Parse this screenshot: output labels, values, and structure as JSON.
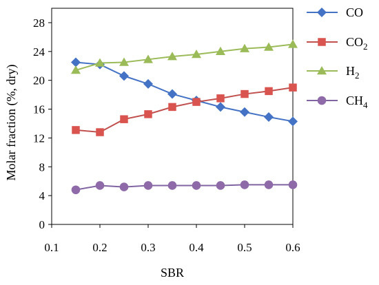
{
  "chart_data": {
    "type": "line",
    "xlabel": "SBR",
    "ylabel": "Molar fraction  (%, dry)",
    "xlim": [
      0.1,
      0.6
    ],
    "ylim": [
      0,
      30
    ],
    "x_ticks": [
      "0.1",
      "0.2",
      "0.3",
      "0.4",
      "0.5",
      "0.6"
    ],
    "y_ticks": [
      "0",
      "4",
      "8",
      "12",
      "16",
      "20",
      "24",
      "28"
    ],
    "grid": false,
    "legend_position": "right",
    "x": [
      0.15,
      0.2,
      0.25,
      0.3,
      0.35,
      0.4,
      0.45,
      0.5,
      0.55,
      0.6
    ],
    "series": [
      {
        "name": "CO",
        "name_sub": "",
        "marker": "diamond",
        "color": "#4472C4",
        "marker_color": "#4472C4",
        "values": [
          22.5,
          22.2,
          20.6,
          19.5,
          18.1,
          17.2,
          16.3,
          15.6,
          14.9,
          14.3
        ]
      },
      {
        "name": "CO",
        "name_sub": "2",
        "marker": "square",
        "color": "#C0504D",
        "marker_color": "#D9534F",
        "values": [
          13.1,
          12.8,
          14.6,
          15.3,
          16.3,
          17.0,
          17.5,
          18.1,
          18.5,
          19.0
        ]
      },
      {
        "name": "H",
        "name_sub": "2",
        "marker": "triangle",
        "color": "#9BBB59",
        "marker_color": "#9BBB59",
        "values": [
          21.4,
          22.4,
          22.5,
          22.9,
          23.3,
          23.6,
          24.0,
          24.4,
          24.6,
          25.0
        ]
      },
      {
        "name": "CH",
        "name_sub": "4",
        "marker": "circle",
        "color": "#8064A2",
        "marker_color": "#8E6BA8",
        "values": [
          4.8,
          5.4,
          5.2,
          5.4,
          5.4,
          5.4,
          5.4,
          5.5,
          5.5,
          5.5
        ]
      }
    ]
  }
}
